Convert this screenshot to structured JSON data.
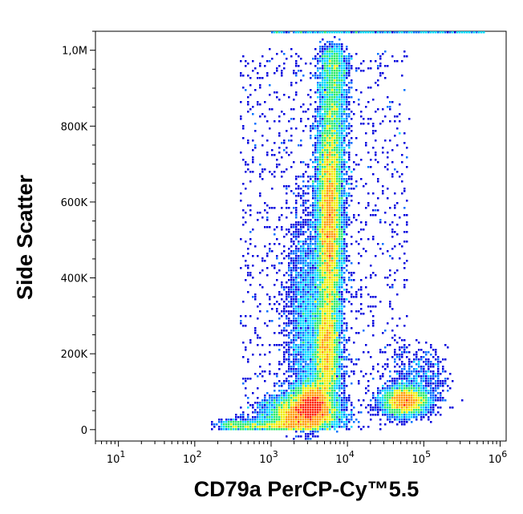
{
  "chart_data": {
    "type": "scatter",
    "title": "",
    "xlabel": "CD79a PerCP-Cy™5.5",
    "ylabel": "Side Scatter",
    "x_scale": "log",
    "xlim": [
      5,
      1200000
    ],
    "ylim": [
      -30000,
      1050000
    ],
    "x_ticks": [
      {
        "value": 10,
        "base": "10",
        "exp": "1"
      },
      {
        "value": 100,
        "base": "10",
        "exp": "2"
      },
      {
        "value": 1000,
        "base": "10",
        "exp": "3"
      },
      {
        "value": 10000,
        "base": "10",
        "exp": "4"
      },
      {
        "value": 100000,
        "base": "10",
        "exp": "5"
      },
      {
        "value": 1000000,
        "base": "10",
        "exp": "6"
      }
    ],
    "y_ticks": [
      {
        "value": 0,
        "label": "0"
      },
      {
        "value": 200000,
        "label": "200K"
      },
      {
        "value": 400000,
        "label": "400K"
      },
      {
        "value": 600000,
        "label": "600K"
      },
      {
        "value": 800000,
        "label": "800K"
      },
      {
        "value": 1000000,
        "label": "1,0M"
      }
    ],
    "grid": false,
    "legend": "none",
    "color_scale": [
      "#0000dd",
      "#0070ff",
      "#00d8ff",
      "#2eea6a",
      "#f0ec00",
      "#ff9a00",
      "#ff2000"
    ],
    "populations": [
      {
        "name_visible": false,
        "x_center": 2500,
        "y_center": 40000,
        "relative_density": 1.0
      },
      {
        "name_visible": false,
        "x_center": 6000,
        "y_center": 550000,
        "relative_density": 0.7
      },
      {
        "name_visible": false,
        "x_center": 5500,
        "y_center": 210000,
        "relative_density": 0.35
      },
      {
        "name_visible": false,
        "x_center": 50000,
        "y_center": 75000,
        "relative_density": 0.3
      }
    ]
  }
}
